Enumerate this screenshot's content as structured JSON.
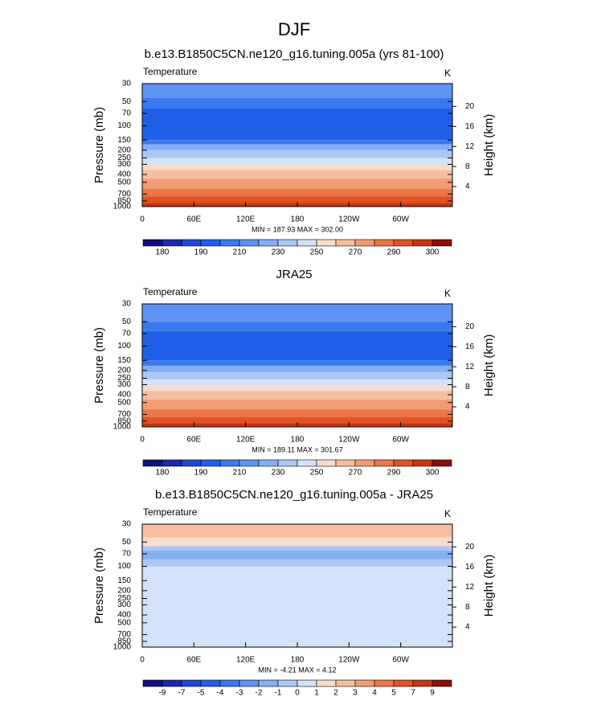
{
  "title": "DJF",
  "chart_data": [
    {
      "type": "contour",
      "title": "b.e13.B1850C5CN.ne120_g16.tuning.005a (yrs 81-100)",
      "left_label": "Temperature",
      "right_label": "K",
      "ylabel": "Pressure (mb)",
      "y2label": "Height (km)",
      "ylim": [
        1000,
        30
      ],
      "log_y": true,
      "yticks": [
        30,
        50,
        70,
        100,
        150,
        200,
        250,
        300,
        400,
        500,
        700,
        850,
        1000
      ],
      "y2ticks": [
        20,
        16,
        12,
        8,
        4
      ],
      "xlim": [
        0,
        360
      ],
      "xticks": [
        0,
        {
          "value": 60,
          "label": "60E"
        },
        {
          "value": 120,
          "label": "120E"
        },
        180,
        {
          "value": 240,
          "label": "120W"
        },
        {
          "value": 300,
          "label": "60W"
        }
      ],
      "stats": "MIN = 187.93  MAX = 302.00",
      "colorbar": {
        "label_every": 2,
        "levels": [
          180,
          185,
          190,
          200,
          210,
          220,
          230,
          240,
          250,
          260,
          270,
          280,
          290,
          295,
          300
        ],
        "colors": [
          "#10107a",
          "#1b2aa8",
          "#1e48d0",
          "#2060e8",
          "#3b78ef",
          "#5d93f2",
          "#84aff3",
          "#abc8f5",
          "#d3e2f8",
          "#f5dccb",
          "#f6bea0",
          "#f29c73",
          "#eb7647",
          "#e05224",
          "#c73614",
          "#8a0f08"
        ]
      },
      "bands": [
        {
          "top": 30,
          "bottom": 45,
          "color": "#5d93f2"
        },
        {
          "top": 45,
          "bottom": 60,
          "color": "#3b78ef"
        },
        {
          "top": 60,
          "bottom": 150,
          "color": "#2060e8"
        },
        {
          "top": 150,
          "bottom": 170,
          "color": "#3b78ef"
        },
        {
          "top": 170,
          "bottom": 200,
          "color": "#84aff3"
        },
        {
          "top": 200,
          "bottom": 250,
          "color": "#abc8f5"
        },
        {
          "top": 250,
          "bottom": 300,
          "color": "#d3e2f8"
        },
        {
          "top": 300,
          "bottom": 350,
          "color": "#f5dccb"
        },
        {
          "top": 350,
          "bottom": 450,
          "color": "#f6bea0"
        },
        {
          "top": 450,
          "bottom": 600,
          "color": "#f29c73"
        },
        {
          "top": 600,
          "bottom": 750,
          "color": "#eb7647"
        },
        {
          "top": 750,
          "bottom": 900,
          "color": "#e05224"
        },
        {
          "top": 900,
          "bottom": 1000,
          "color": "#c73614"
        }
      ]
    },
    {
      "type": "contour",
      "title": "JRA25",
      "left_label": "Temperature",
      "right_label": "K",
      "ylabel": "Pressure (mb)",
      "y2label": "Height (km)",
      "ylim": [
        1000,
        30
      ],
      "log_y": true,
      "yticks": [
        30,
        50,
        70,
        100,
        150,
        200,
        250,
        300,
        400,
        500,
        700,
        850,
        1000
      ],
      "y2ticks": [
        20,
        16,
        12,
        8,
        4
      ],
      "xlim": [
        0,
        360
      ],
      "xticks": [
        0,
        {
          "value": 60,
          "label": "60E"
        },
        {
          "value": 120,
          "label": "120E"
        },
        180,
        {
          "value": 240,
          "label": "120W"
        },
        {
          "value": 300,
          "label": "60W"
        }
      ],
      "stats": "MIN = 189.11  MAX = 301.67",
      "colorbar": {
        "label_every": 2,
        "levels": [
          180,
          185,
          190,
          200,
          210,
          220,
          230,
          240,
          250,
          260,
          270,
          280,
          290,
          295,
          300
        ],
        "colors": [
          "#10107a",
          "#1b2aa8",
          "#1e48d0",
          "#2060e8",
          "#3b78ef",
          "#5d93f2",
          "#84aff3",
          "#abc8f5",
          "#d3e2f8",
          "#f5dccb",
          "#f6bea0",
          "#f29c73",
          "#eb7647",
          "#e05224",
          "#c73614",
          "#8a0f08"
        ]
      },
      "bands": [
        {
          "top": 30,
          "bottom": 50,
          "color": "#5d93f2"
        },
        {
          "top": 50,
          "bottom": 65,
          "color": "#3b78ef"
        },
        {
          "top": 65,
          "bottom": 150,
          "color": "#2060e8"
        },
        {
          "top": 150,
          "bottom": 175,
          "color": "#3b78ef"
        },
        {
          "top": 175,
          "bottom": 210,
          "color": "#84aff3"
        },
        {
          "top": 210,
          "bottom": 260,
          "color": "#abc8f5"
        },
        {
          "top": 260,
          "bottom": 310,
          "color": "#d3e2f8"
        },
        {
          "top": 310,
          "bottom": 360,
          "color": "#f5dccb"
        },
        {
          "top": 360,
          "bottom": 460,
          "color": "#f6bea0"
        },
        {
          "top": 460,
          "bottom": 610,
          "color": "#f29c73"
        },
        {
          "top": 610,
          "bottom": 760,
          "color": "#eb7647"
        },
        {
          "top": 760,
          "bottom": 900,
          "color": "#e05224"
        },
        {
          "top": 900,
          "bottom": 1000,
          "color": "#c73614"
        }
      ]
    },
    {
      "type": "contour",
      "title": "b.e13.B1850C5CN.ne120_g16.tuning.005a - JRA25",
      "left_label": "Temperature",
      "right_label": "K",
      "ylabel": "Pressure (mb)",
      "y2label": "Height (km)",
      "ylim": [
        1000,
        30
      ],
      "log_y": true,
      "yticks": [
        30,
        50,
        70,
        100,
        150,
        200,
        250,
        300,
        400,
        500,
        700,
        850,
        1000
      ],
      "y2ticks": [
        20,
        16,
        12,
        8,
        4
      ],
      "xlim": [
        0,
        360
      ],
      "xticks": [
        0,
        {
          "value": 60,
          "label": "60E"
        },
        {
          "value": 120,
          "label": "120E"
        },
        180,
        {
          "value": 240,
          "label": "120W"
        },
        {
          "value": 300,
          "label": "60W"
        }
      ],
      "stats": "MIN = -4.21  MAX =  4.12",
      "colorbar": {
        "label_every": 1,
        "levels": [
          -9,
          -7,
          -5,
          -4,
          -3,
          -2,
          -1,
          0,
          1,
          2,
          3,
          4,
          5,
          7,
          9
        ],
        "colors": [
          "#10107a",
          "#1b2aa8",
          "#1e48d0",
          "#2060e8",
          "#3b78ef",
          "#5d93f2",
          "#84aff3",
          "#abc8f5",
          "#d3e2f8",
          "#f5dccb",
          "#f6bea0",
          "#f29c73",
          "#eb7647",
          "#e05224",
          "#c73614",
          "#8a0f08"
        ]
      },
      "bands": [
        {
          "top": 30,
          "bottom": 44,
          "color": "#f6bea0"
        },
        {
          "top": 44,
          "bottom": 56,
          "color": "#f5dccb"
        },
        {
          "top": 56,
          "bottom": 64,
          "color": "#abc8f5"
        },
        {
          "top": 64,
          "bottom": 82,
          "color": "#84aff3"
        },
        {
          "top": 82,
          "bottom": 100,
          "color": "#abc8f5"
        },
        {
          "top": 100,
          "bottom": 1000,
          "color": "#d3e2f8"
        }
      ]
    }
  ]
}
